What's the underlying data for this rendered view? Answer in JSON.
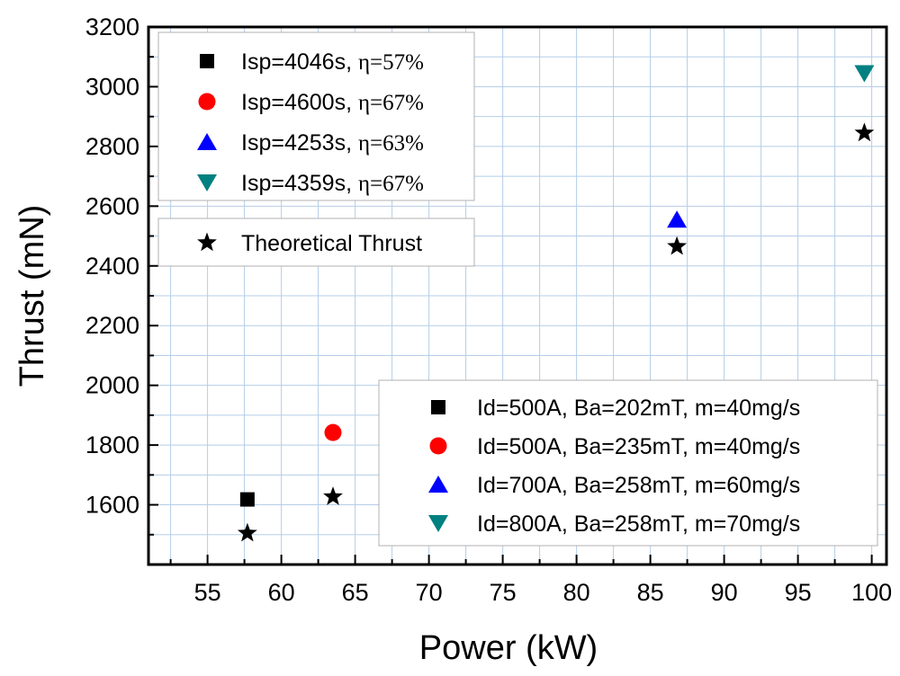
{
  "chart_data": {
    "type": "scatter",
    "xlabel": "Power (kW)",
    "ylabel": "Thrust (mN)",
    "xlim": [
      51,
      101
    ],
    "ylim": [
      1400,
      3200
    ],
    "grid": true,
    "x_ticks": [
      55,
      60,
      65,
      70,
      75,
      80,
      85,
      90,
      95,
      100
    ],
    "y_ticks": [
      1600,
      1800,
      2000,
      2200,
      2400,
      2600,
      2800,
      3000,
      3200
    ],
    "series": [
      {
        "name": "Isp=4046s, η=57%",
        "condition": "Id=500A, Ba=202mT, m=40mg/s",
        "marker": "square",
        "color": "#000000",
        "x": 57.7,
        "y": 1618
      },
      {
        "name": "Isp=4600s, η=67%",
        "condition": "Id=500A, Ba=235mT, m=40mg/s",
        "marker": "circle",
        "color": "#ff0000",
        "x": 63.5,
        "y": 1842
      },
      {
        "name": "Isp=4253s, η=63%",
        "condition": "Id=700A, Ba=258mT, m=60mg/s",
        "marker": "triangle-up",
        "color": "#0000ff",
        "x": 86.8,
        "y": 2555
      },
      {
        "name": "Isp=4359s, η=67%",
        "condition": "Id=800A, Ba=258mT, m=70mg/s",
        "marker": "triangle-down",
        "color": "#008080",
        "x": 99.5,
        "y": 3045
      }
    ],
    "theoretical": {
      "name": "Theoretical Thrust",
      "marker": "star",
      "color": "#000000",
      "points": [
        {
          "x": 57.7,
          "y": 1505
        },
        {
          "x": 63.5,
          "y": 1627
        },
        {
          "x": 86.8,
          "y": 2465
        },
        {
          "x": 99.5,
          "y": 2845
        }
      ]
    },
    "legend_isp": [
      {
        "isp": "Isp=4046s, ",
        "eta": "η=57%"
      },
      {
        "isp": "Isp=4600s, ",
        "eta": "η=67%"
      },
      {
        "isp": "Isp=4253s, ",
        "eta": "η=63%"
      },
      {
        "isp": "Isp=4359s, ",
        "eta": "η=67%"
      }
    ],
    "legend_theory_label": "Theoretical Thrust",
    "legend_conditions": [
      "Id=500A, Ba=202mT, m=40mg/s",
      "Id=500A, Ba=235mT, m=40mg/s",
      "Id=700A, Ba=258mT, m=60mg/s",
      "Id=800A, Ba=258mT, m=70mg/s"
    ],
    "legend_placement": {
      "isp": "top-left",
      "theory": "upper-left",
      "conditions": "bottom-right"
    }
  }
}
